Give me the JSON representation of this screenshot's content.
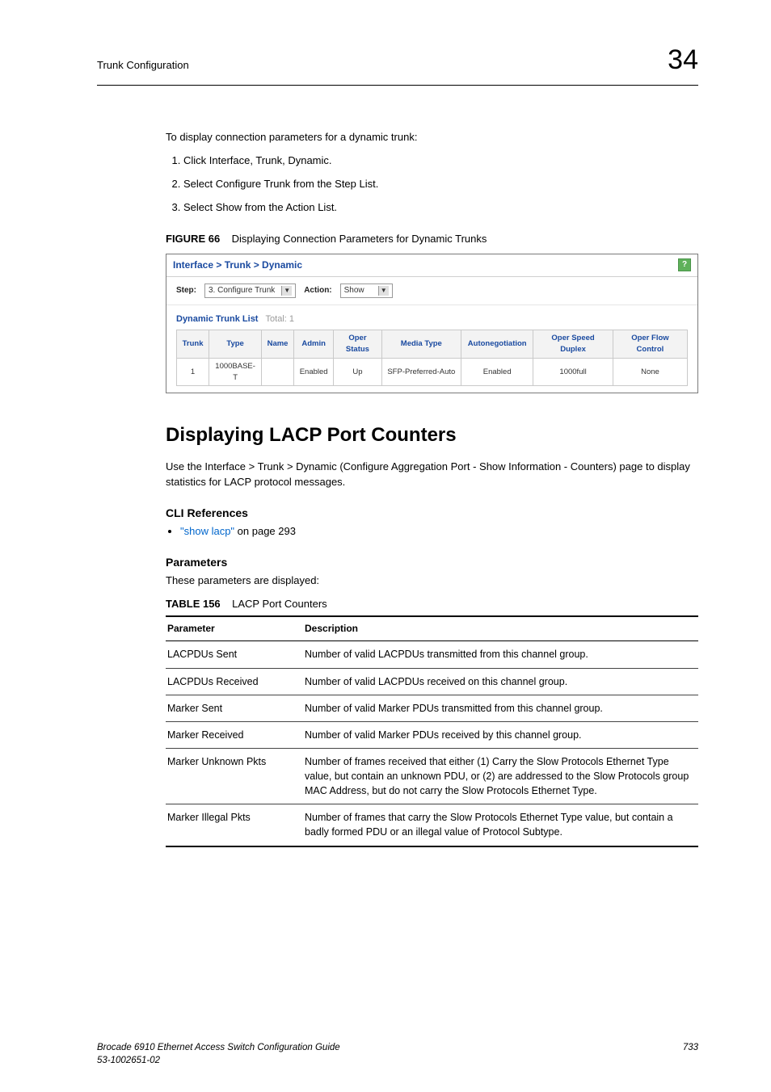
{
  "header": {
    "section": "Trunk Configuration",
    "chapter_number": "34"
  },
  "intro_para": "To display connection parameters for a dynamic trunk:",
  "steps": [
    "Click Interface, Trunk, Dynamic.",
    "Select Configure Trunk from the Step List.",
    "Select Show from the Action List."
  ],
  "figure": {
    "label": "FIGURE 66",
    "title": "Displaying Connection Parameters for Dynamic Trunks"
  },
  "screenshot": {
    "breadcrumb": "Interface > Trunk > Dynamic",
    "help_glyph": "?",
    "step_label": "Step:",
    "step_value": "3. Configure Trunk",
    "action_label": "Action:",
    "action_value": "Show",
    "list_title": "Dynamic Trunk List",
    "list_total": "Total: 1",
    "columns": [
      "Trunk",
      "Type",
      "Name",
      "Admin",
      "Oper Status",
      "Media Type",
      "Autonegotiation",
      "Oper Speed Duplex",
      "Oper Flow Control"
    ],
    "row": [
      "1",
      "1000BASE-T",
      "",
      "Enabled",
      "Up",
      "SFP-Preferred-Auto",
      "Enabled",
      "1000full",
      "None"
    ],
    "colwidths": [
      "5%",
      "9%",
      "4%",
      "6%",
      "9%",
      "15%",
      "13%",
      "15%",
      "14%"
    ],
    "header_bg": "#f3f3f3",
    "header_color": "#1a4aa0",
    "border_color": "#c9c9c9"
  },
  "section": {
    "title": "Displaying LACP Port Counters",
    "para": "Use the Interface > Trunk > Dynamic (Configure Aggregation Port - Show Information - Counters) page to display statistics for LACP protocol messages."
  },
  "cli_ref": {
    "heading": "CLI References",
    "link_text": "\"show lacp\"",
    "link_suffix": " on page 293"
  },
  "params": {
    "heading": "Parameters",
    "line": "These parameters are displayed:"
  },
  "table156": {
    "label": "TABLE 156",
    "title": "LACP Port Counters",
    "col_header_1": "Parameter",
    "col_header_2": "Description",
    "rows": [
      {
        "p": "LACPDUs Sent",
        "d": "Number of valid LACPDUs transmitted from this channel group."
      },
      {
        "p": "LACPDUs Received",
        "d": "Number of valid LACPDUs received on this channel group."
      },
      {
        "p": "Marker Sent",
        "d": "Number of valid Marker PDUs transmitted from this channel group."
      },
      {
        "p": "Marker Received",
        "d": "Number of valid Marker PDUs received by this channel group."
      },
      {
        "p": "Marker Unknown Pkts",
        "d": "Number of frames received that either (1) Carry the Slow Protocols Ethernet Type value, but contain an unknown PDU, or (2) are addressed to the Slow Protocols group MAC Address, but do not carry the Slow Protocols Ethernet Type."
      },
      {
        "p": "Marker Illegal Pkts",
        "d": "Number of frames that carry the Slow Protocols Ethernet Type value, but contain a badly formed PDU or an illegal value of Protocol Subtype."
      }
    ]
  },
  "footer": {
    "line1": "Brocade 6910 Ethernet Access Switch Configuration Guide",
    "line2": "53-1002651-02",
    "page": "733"
  }
}
